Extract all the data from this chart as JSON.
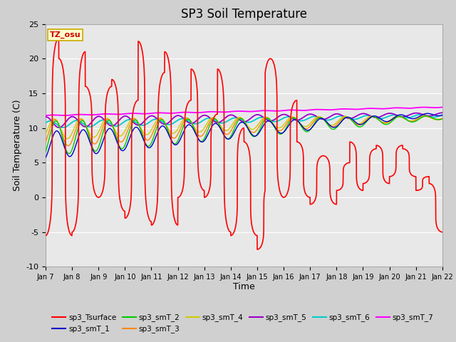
{
  "title": "SP3 Soil Temperature",
  "ylabel": "Soil Temperature (C)",
  "xlabel": "Time",
  "tz_label": "TZ_osu",
  "ylim": [
    -10,
    25
  ],
  "xtick_labels": [
    "Jan 7",
    "Jan 8",
    "Jan 9",
    "Jan 10",
    "Jan 11",
    "Jan 12",
    "Jan 13",
    "Jan 14",
    "Jan 15",
    "Jan 16",
    "Jan 17",
    "Jan 18",
    "Jan 19",
    "Jan 20",
    "Jan 21",
    "Jan 22"
  ],
  "legend_entries": [
    "sp3_Tsurface",
    "sp3_smT_1",
    "sp3_smT_2",
    "sp3_smT_3",
    "sp3_smT_4",
    "sp3_smT_5",
    "sp3_smT_6",
    "sp3_smT_7"
  ],
  "line_colors": [
    "#ff0000",
    "#0000cc",
    "#00cc00",
    "#ff8800",
    "#cccc00",
    "#9900cc",
    "#00cccc",
    "#ff00ff"
  ],
  "fig_facecolor": "#d0d0d0",
  "plot_facecolor": "#e8e8e8",
  "title_fontsize": 12,
  "axis_label_fontsize": 9,
  "tick_fontsize": 8
}
